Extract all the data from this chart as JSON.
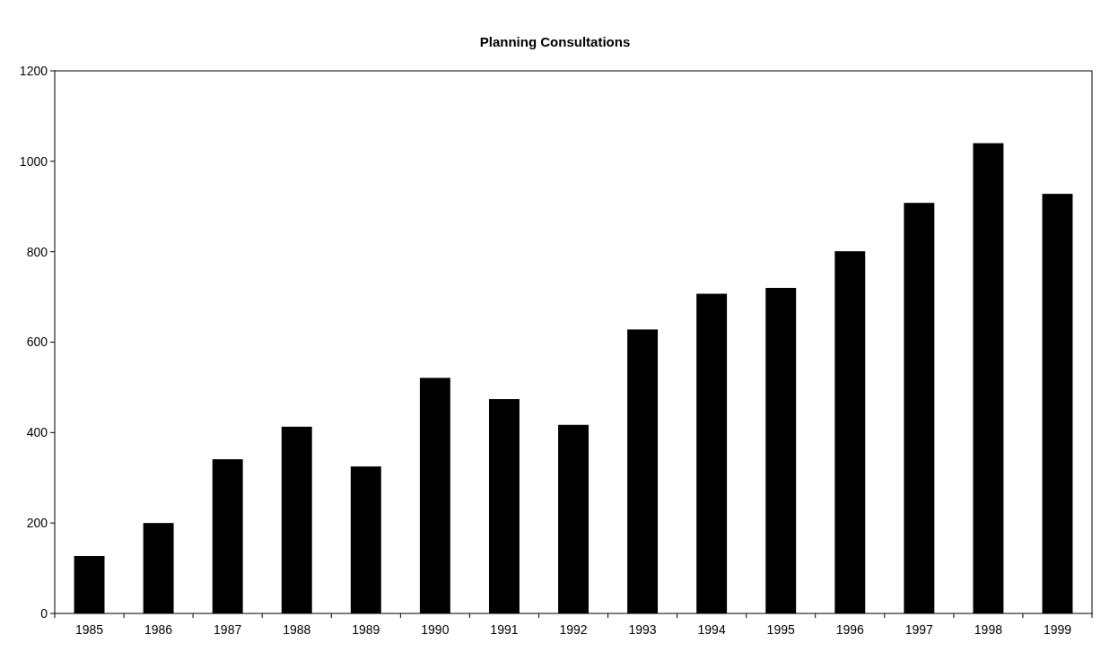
{
  "chart_data": {
    "type": "bar",
    "title": "Planning Consultations",
    "categories": [
      "1985",
      "1986",
      "1987",
      "1988",
      "1989",
      "1990",
      "1991",
      "1992",
      "1993",
      "1994",
      "1995",
      "1996",
      "1997",
      "1998",
      "1999"
    ],
    "values": [
      127,
      200,
      341,
      413,
      325,
      521,
      474,
      417,
      628,
      707,
      720,
      801,
      908,
      1040,
      928
    ],
    "color": "#000000",
    "ylim": [
      0,
      1200
    ],
    "yticks": [
      0,
      200,
      400,
      600,
      800,
      1000,
      1200
    ],
    "grid": false
  }
}
